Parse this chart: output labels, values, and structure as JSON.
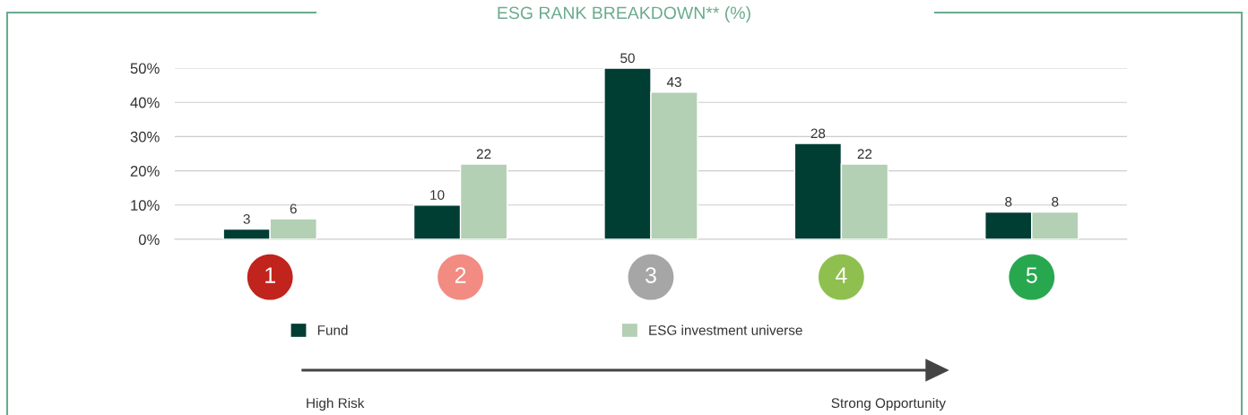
{
  "chart_data": {
    "type": "bar",
    "title": "ESG RANK BREAKDOWN** (%)",
    "categories": [
      "1",
      "2",
      "3",
      "4",
      "5"
    ],
    "series": [
      {
        "name": "Fund",
        "color": "#003d33",
        "values": [
          3,
          10,
          50,
          28,
          8
        ]
      },
      {
        "name": "ESG investment universe",
        "color": "#b3cfb4",
        "values": [
          6,
          22,
          43,
          22,
          8
        ]
      }
    ],
    "ylim": [
      0,
      50
    ],
    "yticks": [
      {
        "value": 0,
        "label": "0%"
      },
      {
        "value": 10,
        "label": "10%"
      },
      {
        "value": 20,
        "label": "20%"
      },
      {
        "value": 30,
        "label": "30%"
      },
      {
        "value": 40,
        "label": "40%"
      },
      {
        "value": 50,
        "label": "50%"
      }
    ],
    "grid": "y",
    "legend": "bottom",
    "data_labels": true,
    "annotations": [
      "High Risk",
      "Strong Opportunity"
    ]
  }
}
